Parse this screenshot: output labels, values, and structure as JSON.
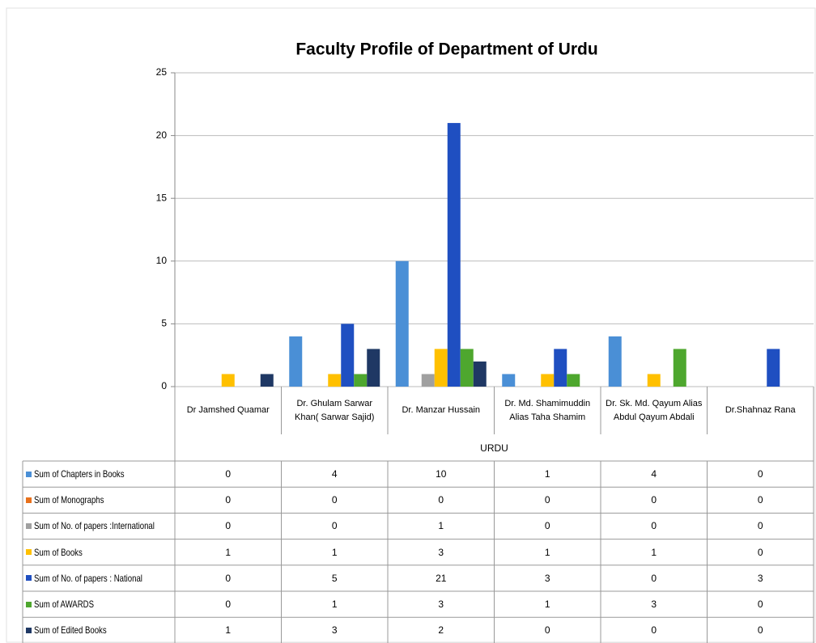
{
  "chart_data": {
    "type": "bar",
    "title": "Faculty Profile of Department of Urdu",
    "categories": [
      "Dr Jamshed Quamar",
      "Dr. Ghulam Sarwar Khan( Sarwar Sajid)",
      "Dr. Manzar Hussain",
      "Dr. Md. Shamimuddin Alias Taha Shamim",
      "Dr. Sk. Md. Qayum Alias Abdul Qayum Abdali",
      "Dr.Shahnaz Rana"
    ],
    "group_label": "URDU",
    "series": [
      {
        "name": "Sum of Chapters in Books",
        "color": "#4a8fd6",
        "values": [
          0,
          4,
          10,
          1,
          4,
          0
        ]
      },
      {
        "name": "Sum of Monographs",
        "color": "#e8711c",
        "values": [
          0,
          0,
          0,
          0,
          0,
          0
        ]
      },
      {
        "name": "Sum of No. of papers :International",
        "color": "#a0a0a0",
        "values": [
          0,
          0,
          1,
          0,
          0,
          0
        ]
      },
      {
        "name": "Sum of Books",
        "color": "#ffc000",
        "values": [
          1,
          1,
          3,
          1,
          1,
          0
        ]
      },
      {
        "name": "Sum of No. of papers : National",
        "color": "#1f4fc1",
        "values": [
          0,
          5,
          21,
          3,
          0,
          3
        ]
      },
      {
        "name": "Sum of AWARDS",
        "color": "#4ea72e",
        "values": [
          0,
          1,
          3,
          1,
          3,
          0
        ]
      },
      {
        "name": "Sum of Edited Books",
        "color": "#1f3864",
        "values": [
          1,
          3,
          2,
          0,
          0,
          0
        ]
      }
    ],
    "ylim": [
      0,
      25
    ],
    "yticks": [
      0,
      5,
      10,
      15,
      20,
      25
    ],
    "grid": true,
    "legend": "table"
  }
}
